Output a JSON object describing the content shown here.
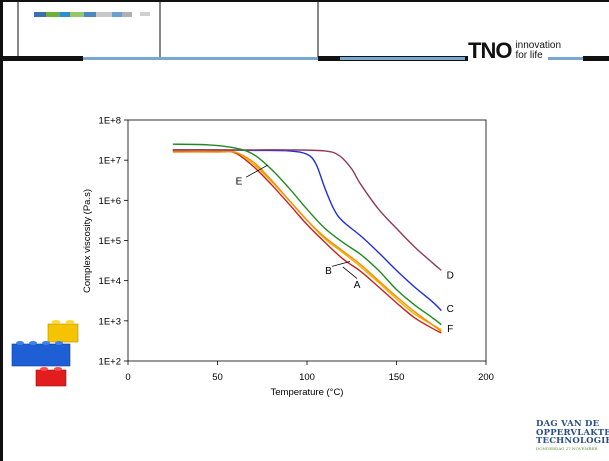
{
  "header": {
    "brand_mark": "TNO",
    "tagline_line1": "innovation",
    "tagline_line2": "for life"
  },
  "footer_logo": {
    "line1": "DAG VAN DE",
    "line2": "OPPERVLAKTE",
    "line3": "TECHNOLOGIE",
    "line4": "DONDERDAG 27 NOVEMBER"
  },
  "colors": {
    "header_bar": "#7aa7d0",
    "series_A": "#cc1f1f",
    "series_B": "#e6b800",
    "series_C": "#1e2ee0",
    "series_D": "#8f3a5c",
    "series_E": "#ff8a00",
    "series_F": "#1f8a1f"
  },
  "chart_data": {
    "type": "line",
    "title": "",
    "xlabel": "Temperature (°C)",
    "ylabel": "Complex viscosity (Pa.s)",
    "xlim": [
      0,
      200
    ],
    "ylim": [
      100,
      100000000
    ],
    "yscale": "log",
    "grid": false,
    "x_ticks": [
      "0",
      "50",
      "100",
      "150",
      "200"
    ],
    "y_ticks": [
      "1E+2",
      "1E+3",
      "1E+4",
      "1E+5",
      "1E+6",
      "1E+7",
      "1E+8"
    ],
    "series": [
      {
        "name": "A",
        "color": "#cc1f1f",
        "x": [
          25,
          50,
          60,
          70,
          80,
          90,
          100,
          110,
          120,
          130,
          140,
          150,
          160,
          170,
          175
        ],
        "y": [
          17000000,
          17000000,
          15000000,
          7000000,
          2500000,
          800000,
          250000,
          90000,
          35000,
          17000,
          7000,
          2800,
          1200,
          650,
          500
        ]
      },
      {
        "name": "B",
        "color": "#e6b800",
        "x": [
          25,
          50,
          60,
          70,
          80,
          90,
          100,
          110,
          120,
          130,
          140,
          150,
          160,
          170,
          175
        ],
        "y": [
          17500000,
          17500000,
          16000000,
          8000000,
          3000000,
          1000000,
          320000,
          110000,
          50000,
          22000,
          9000,
          3500,
          1500,
          800,
          600
        ]
      },
      {
        "name": "C",
        "color": "#1e2ee0",
        "x": [
          25,
          50,
          70,
          90,
          100,
          105,
          110,
          115,
          120,
          130,
          140,
          150,
          160,
          170,
          175
        ],
        "y": [
          18000000,
          18000000,
          17500000,
          17000000,
          14000000,
          8000000,
          2000000,
          600000,
          300000,
          130000,
          50000,
          18000,
          7000,
          3000,
          1800
        ]
      },
      {
        "name": "D",
        "color": "#8f3a5c",
        "x": [
          25,
          50,
          70,
          90,
          110,
          118,
          125,
          130,
          140,
          150,
          160,
          170,
          175
        ],
        "y": [
          18000000,
          18000000,
          18000000,
          18000000,
          17000000,
          13000000,
          6000000,
          2500000,
          600000,
          200000,
          70000,
          28000,
          18000
        ]
      },
      {
        "name": "E",
        "color": "#ff8a00",
        "x": [
          25,
          50,
          60,
          70,
          80,
          90,
          100,
          110,
          120,
          130,
          140,
          150,
          160,
          170,
          175
        ],
        "y": [
          16000000,
          16000000,
          15500000,
          9000000,
          3200000,
          1000000,
          320000,
          120000,
          55000,
          25000,
          10000,
          4000,
          1700,
          800,
          550
        ]
      },
      {
        "name": "F",
        "color": "#1f8a1f",
        "x": [
          25,
          45,
          60,
          70,
          80,
          90,
          100,
          110,
          120,
          130,
          140,
          150,
          160,
          170,
          175
        ],
        "y": [
          25000000,
          24000000,
          20000000,
          14000000,
          6000000,
          2000000,
          600000,
          200000,
          90000,
          45000,
          18000,
          6000,
          2500,
          1200,
          800
        ]
      }
    ],
    "annotations": [
      {
        "label": "A",
        "x": 128,
        "y": 8000
      },
      {
        "label": "B",
        "x": 112,
        "y": 18000
      },
      {
        "label": "C",
        "x": 180,
        "y": 2000
      },
      {
        "label": "D",
        "x": 180,
        "y": 14000
      },
      {
        "label": "E",
        "x": 62,
        "y": 3000000
      },
      {
        "label": "F",
        "x": 180,
        "y": 650
      }
    ]
  }
}
